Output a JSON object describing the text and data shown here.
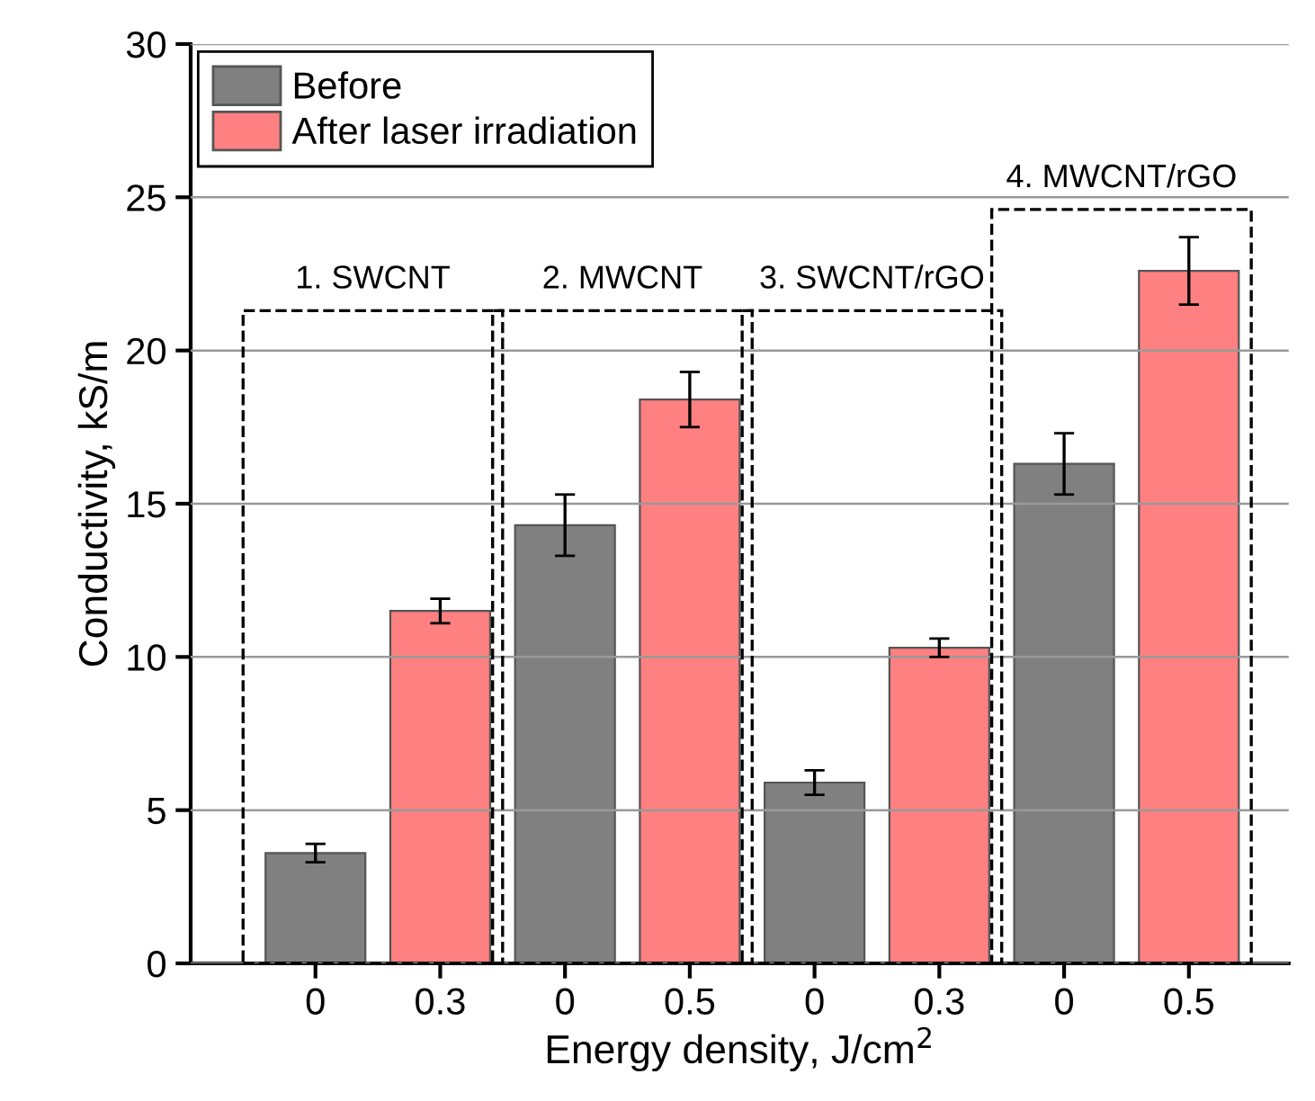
{
  "chart_data": {
    "type": "bar",
    "categories": [
      "0",
      "0.3",
      "0",
      "0.5",
      "0",
      "0.3",
      "0",
      "0.5"
    ],
    "series": [
      {
        "name": "Before",
        "color": "#808080",
        "values": [
          3.6,
          null,
          14.3,
          null,
          5.9,
          null,
          16.3,
          null
        ],
        "errors": [
          0.3,
          null,
          1.0,
          null,
          0.4,
          null,
          1.0,
          null
        ]
      },
      {
        "name": "After laser irradiation",
        "color": "#ff8080",
        "values": [
          null,
          11.5,
          null,
          18.4,
          null,
          10.3,
          null,
          22.6
        ],
        "errors": [
          null,
          0.4,
          null,
          0.9,
          null,
          0.3,
          null,
          1.1
        ]
      }
    ],
    "xlabel": "Energy density, J/cm$^{2}$",
    "ylabel": "Conductivity, kS/m",
    "ylim": [
      0,
      30
    ],
    "yticks": [
      0,
      5,
      10,
      15,
      20,
      25,
      30
    ],
    "grid": "y",
    "legend": "top left",
    "annotations": [
      "1. SWCNT",
      "2. MWCNT",
      "3. SWCNT/rGO",
      "4. MWCNT/rGO"
    ]
  }
}
